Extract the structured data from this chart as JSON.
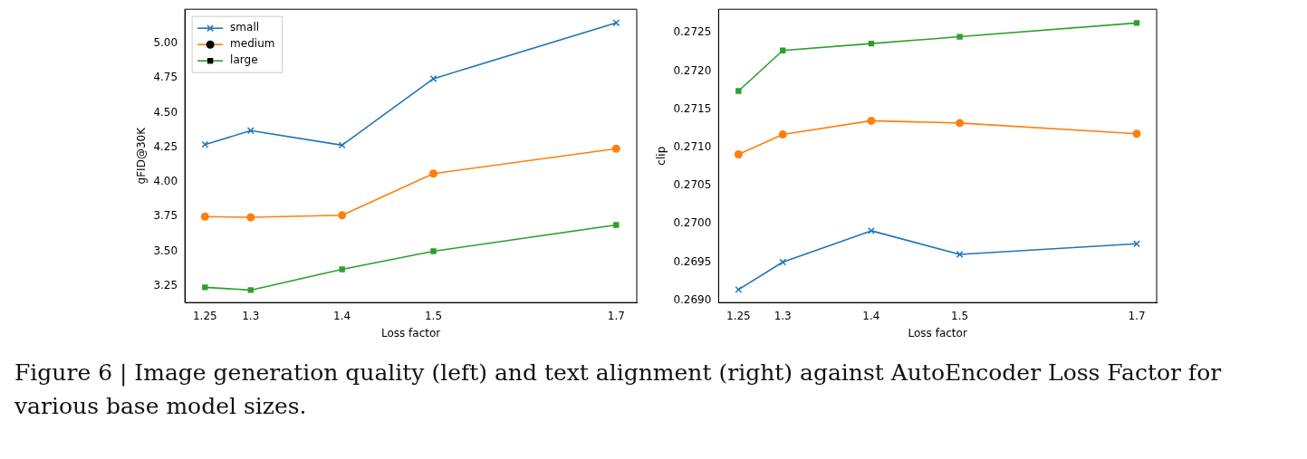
{
  "chart_data": [
    {
      "type": "line",
      "xlabel": "Loss factor",
      "ylabel": "gFID@30K",
      "x": [
        1.25,
        1.3,
        1.4,
        1.5,
        1.7
      ],
      "xlim": [
        1.228,
        1.7225
      ],
      "xticks": [
        1.25,
        1.3,
        1.4,
        1.5,
        1.7
      ],
      "ylim": [
        3.13,
        5.246
      ],
      "yticks": [
        {
          "value": 3.25,
          "label": "3.25"
        },
        {
          "value": 3.5,
          "label": "3.50"
        },
        {
          "value": 3.75,
          "label": "3.75"
        },
        {
          "value": 4,
          "label": "4.00"
        },
        {
          "value": 4.25,
          "label": "4.25"
        },
        {
          "value": 4.5,
          "label": "4.50"
        },
        {
          "value": 4.75,
          "label": "4.75"
        },
        {
          "value": 5,
          "label": "5.00"
        }
      ],
      "grid": false,
      "legend": "top left",
      "annotations": [
        "Figure 6 | Image generation quality (left) and text alignment (right) against AutoEncoder Loss Factor for various base model sizes."
      ],
      "series": [
        {
          "name": "small",
          "color": "#1f77b4",
          "marker": "cross",
          "values": [
            4.27,
            4.37,
            4.265,
            4.745,
            5.148
          ]
        },
        {
          "name": "medium",
          "color": "#ff7f0e",
          "marker": "circle",
          "values": [
            3.75,
            3.745,
            3.76,
            4.06,
            4.24
          ]
        },
        {
          "name": "large",
          "color": "#2ca02c",
          "marker": "square",
          "values": [
            3.24,
            3.22,
            3.37,
            3.5,
            3.69
          ]
        }
      ]
    },
    {
      "type": "line",
      "xlabel": "Loss factor",
      "ylabel": "clip",
      "x": [
        1.25,
        1.3,
        1.4,
        1.5,
        1.7
      ],
      "xlim": [
        1.2275,
        1.7225
      ],
      "xticks": [
        1.25,
        1.3,
        1.4,
        1.5,
        1.7
      ],
      "ylim": [
        0.26897,
        0.27281
      ],
      "yticks": [
        {
          "value": 0.269,
          "label": "0.2690"
        },
        {
          "value": 0.2695,
          "label": "0.2695"
        },
        {
          "value": 0.27,
          "label": "0.2700"
        },
        {
          "value": 0.2705,
          "label": "0.2705"
        },
        {
          "value": 0.271,
          "label": "0.2710"
        },
        {
          "value": 0.2715,
          "label": "0.2715"
        },
        {
          "value": 0.272,
          "label": "0.2720"
        },
        {
          "value": 0.2725,
          "label": "0.2725"
        }
      ],
      "grid": false,
      "series": [
        {
          "color": "#1f77b4",
          "marker": "cross",
          "values": [
            0.26914,
            0.2695,
            0.26991,
            0.2696,
            0.26974
          ]
        },
        {
          "color": "#ff7f0e",
          "marker": "circle",
          "values": [
            0.27091,
            0.27117,
            0.27135,
            0.27132,
            0.27118
          ]
        },
        {
          "color": "#2ca02c",
          "marker": "square",
          "values": [
            0.27174,
            0.27227,
            0.27236,
            0.27245,
            0.27263
          ]
        }
      ]
    }
  ]
}
